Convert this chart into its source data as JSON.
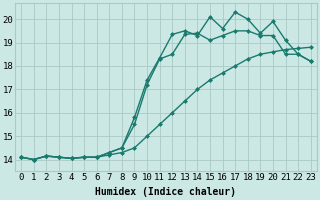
{
  "xlabel": "Humidex (Indice chaleur)",
  "background_color": "#cce8e5",
  "grid_color": "#aacac7",
  "line_color": "#1a7a6e",
  "xlim": [
    -0.5,
    23.5
  ],
  "ylim": [
    13.5,
    20.7
  ],
  "xticks": [
    0,
    1,
    2,
    3,
    4,
    5,
    6,
    7,
    8,
    9,
    10,
    11,
    12,
    13,
    14,
    15,
    16,
    17,
    18,
    19,
    20,
    21,
    22,
    23
  ],
  "yticks": [
    14,
    15,
    16,
    17,
    18,
    19,
    20
  ],
  "line1_x": [
    0,
    1,
    2,
    3,
    4,
    5,
    6,
    7,
    8,
    9,
    10,
    11,
    12,
    13,
    14,
    15,
    16,
    17,
    18,
    19,
    20,
    21,
    22,
    23
  ],
  "line1_y": [
    14.1,
    14.0,
    14.15,
    14.1,
    14.05,
    14.1,
    14.1,
    14.2,
    14.3,
    14.5,
    15.0,
    15.5,
    16.0,
    16.5,
    17.0,
    17.4,
    17.7,
    18.0,
    18.3,
    18.5,
    18.6,
    18.7,
    18.75,
    18.8
  ],
  "line2_x": [
    0,
    1,
    2,
    3,
    4,
    5,
    6,
    7,
    8,
    9,
    10,
    11,
    12,
    13,
    14,
    15,
    16,
    17,
    18,
    19,
    20,
    21,
    22,
    23
  ],
  "line2_y": [
    14.1,
    14.0,
    14.15,
    14.1,
    14.05,
    14.1,
    14.1,
    14.3,
    14.5,
    15.5,
    17.2,
    18.3,
    18.5,
    19.35,
    19.4,
    19.1,
    19.3,
    19.5,
    19.5,
    19.3,
    19.3,
    18.5,
    18.5,
    18.2
  ],
  "line3_x": [
    0,
    1,
    2,
    3,
    4,
    5,
    6,
    7,
    8,
    9,
    10,
    11,
    12,
    13,
    14,
    15,
    16,
    17,
    18,
    19,
    20,
    21,
    22,
    23
  ],
  "line3_y": [
    14.1,
    14.0,
    14.15,
    14.1,
    14.05,
    14.1,
    14.1,
    14.3,
    14.5,
    15.8,
    17.4,
    18.35,
    19.35,
    19.5,
    19.3,
    20.1,
    19.6,
    20.3,
    20.0,
    19.4,
    19.9,
    19.1,
    18.5,
    18.2
  ],
  "marker": "D",
  "markersize": 2.5,
  "linewidth": 1.0,
  "fontsize_label": 7,
  "fontsize_tick": 6.5
}
